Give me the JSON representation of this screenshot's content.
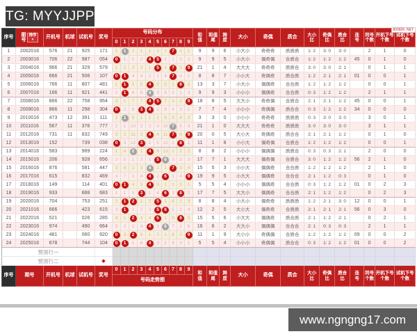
{
  "page": {
    "tg_label": "TG: MYYJJPP",
    "corner_mark": "800820. NET",
    "site_watermark": "www.ngngng17.com"
  },
  "table": {
    "headers": {
      "seq": "序号",
      "period": "期号",
      "period_stack": [
        "期",
        "号"
      ],
      "sort": "排序",
      "sort_arrow": "▼",
      "open": "开机号",
      "mball": "机球",
      "test": "试机号",
      "prize": "奖号",
      "dist_title": "号码分布",
      "trend_title": "号码走势图",
      "sum": [
        "和",
        "值"
      ],
      "sum_tail": [
        "和值",
        "尾"
      ],
      "span": [
        "跨",
        "度"
      ],
      "size": [
        "大小"
      ],
      "parity": [
        "奇偶"
      ],
      "prime": [
        "质合"
      ],
      "size_ratio": [
        "大小",
        "比"
      ],
      "parity_ratio": [
        "奇偶",
        "比"
      ],
      "prime_ratio": [
        "质合",
        "比"
      ],
      "consec": [
        "连",
        "号"
      ],
      "same_count": [
        "同号",
        "个数"
      ],
      "open_next": [
        "开机下号",
        "个数"
      ],
      "test_next": [
        "试机下号",
        "个数"
      ]
    },
    "digits": [
      "0",
      "1",
      "2",
      "3",
      "4",
      "5",
      "6",
      "7",
      "8",
      "9"
    ],
    "prediction_rows": [
      {
        "label": "预测行一",
        "mark": ""
      },
      {
        "label": "预测行二",
        "mark": "◆"
      }
    ],
    "rows": [
      {
        "seq": "1",
        "period": "2002016",
        "open": "576",
        "mball": "21",
        "test": "925",
        "prize": "171",
        "grid": [
          "1",
          "g1",
          "1",
          "1",
          "1",
          "1",
          "1",
          "r7",
          "1",
          "1"
        ],
        "sum": "9",
        "tail": "9",
        "span": "6",
        "size": "小大小",
        "parity": "奇奇奇",
        "prime": "质质质",
        "sr": "1: 2",
        "pr": "3: 0",
        "qr": "3: 0",
        "lh": "",
        "tong": "2",
        "kai": "1",
        "shi": "0"
      },
      {
        "seq": "2",
        "period": "2003016",
        "open": "706",
        "mball": "22",
        "test": "987",
        "prize": "054",
        "grid": [
          "r0",
          "1",
          "2",
          "2",
          "r4",
          "r5",
          "2",
          "1",
          "2",
          "2"
        ],
        "sum": "9",
        "tail": "9",
        "span": "5",
        "size": "小大小",
        "parity": "偶奇偶",
        "prime": "合质合",
        "sr": "1: 2",
        "pr": "1: 2",
        "qr": "1: 2",
        "lh": "45",
        "tong": "0",
        "kai": "1",
        "shi": "0"
      },
      {
        "seq": "3",
        "period": "2004016",
        "open": "966",
        "mball": "21",
        "test": "329",
        "prize": "579",
        "grid": [
          "1",
          "2",
          "3",
          "3",
          "1",
          "r5",
          "3",
          "r7",
          "3",
          "r9"
        ],
        "sum": "21",
        "tail": "1",
        "span": "4",
        "size": "大大大",
        "parity": "奇奇奇",
        "prime": "质质合",
        "sr": "3: 0",
        "pr": "3: 0",
        "qr": "2: 1",
        "lh": "",
        "tong": "0",
        "kai": "1",
        "shi": "1"
      },
      {
        "seq": "4",
        "period": "2005016",
        "open": "666",
        "mball": "21",
        "test": "506",
        "prize": "107",
        "grid": [
          "r0",
          "r1",
          "4",
          "4",
          "2",
          "1",
          "4",
          "r7",
          "4",
          "1"
        ],
        "sum": "8",
        "tail": "8",
        "span": "7",
        "size": "小小大",
        "parity": "奇偶奇",
        "prime": "质合质",
        "sr": "1: 2",
        "pr": "2: 1",
        "qr": "2: 1",
        "lh": "01",
        "tong": "0",
        "kai": "0",
        "shi": "1"
      },
      {
        "seq": "5",
        "period": "2006016",
        "open": "766",
        "mball": "11",
        "test": "807",
        "prize": "481",
        "grid": [
          "1",
          "r1",
          "5",
          "5",
          "r4",
          "2",
          "5",
          "1",
          "r8",
          "2"
        ],
        "sum": "13",
        "tail": "3",
        "span": "7",
        "size": "小大小",
        "parity": "偶偶奇",
        "prime": "合合质",
        "sr": "1: 2",
        "pr": "1: 2",
        "qr": "1: 2",
        "lh": "",
        "tong": "0",
        "kai": "0",
        "shi": "1"
      },
      {
        "seq": "6",
        "period": "2007016",
        "open": "166",
        "mball": "11",
        "test": "921",
        "prize": "441",
        "grid": [
          "2",
          "r1",
          "6",
          "6",
          "g4",
          "3",
          "6",
          "2",
          "1",
          "3"
        ],
        "sum": "9",
        "tail": "9",
        "span": "3",
        "size": "小小小",
        "parity": "偶偶奇",
        "prime": "合合质",
        "sr": "0: 3",
        "pr": "1: 2",
        "qr": "1: 2",
        "lh": "",
        "tong": "2",
        "kai": "1",
        "shi": "1"
      },
      {
        "seq": "7",
        "period": "2008016",
        "open": "866",
        "mball": "22",
        "test": "758",
        "prize": "954",
        "grid": [
          "3",
          "1",
          "7",
          "7",
          "r4",
          "r5",
          "7",
          "3",
          "2",
          "r9"
        ],
        "sum": "18",
        "tail": "8",
        "span": "5",
        "size": "大大小",
        "parity": "奇奇偶",
        "prime": "合质合",
        "sr": "2: 1",
        "pr": "2: 1",
        "qr": "1: 2",
        "lh": "45",
        "tong": "0",
        "kai": "0",
        "shi": "1"
      },
      {
        "seq": "8",
        "period": "2009016",
        "open": "866",
        "mball": "11",
        "test": "298",
        "prize": "304",
        "grid": [
          "r0",
          "2",
          "8",
          "r3",
          "r4",
          "1",
          "8",
          "4",
          "3",
          "1"
        ],
        "sum": "7",
        "tail": "7",
        "span": "4",
        "size": "小小小",
        "parity": "奇偶偶",
        "prime": "质合合",
        "sr": "0: 3",
        "pr": "1: 2",
        "qr": "1: 2",
        "lh": "34",
        "tong": "0",
        "kai": "0",
        "shi": "0"
      },
      {
        "seq": "9",
        "period": "2010016",
        "open": "473",
        "mball": "12",
        "test": "391",
        "prize": "111",
        "grid": [
          "1",
          "g1",
          "9",
          "1",
          "1",
          "2",
          "9",
          "5",
          "4",
          "2"
        ],
        "sum": "3",
        "tail": "3",
        "span": "0",
        "size": "小小小",
        "parity": "奇奇奇",
        "prime": "质质质",
        "sr": "0: 3",
        "pr": "3: 0",
        "qr": "3: 0",
        "lh": "",
        "tong": "3",
        "kai": "0",
        "shi": "1"
      },
      {
        "seq": "10",
        "period": "2011016",
        "open": "567",
        "mball": "11",
        "test": "376",
        "prize": "777",
        "grid": [
          "2",
          "1",
          "10",
          "2",
          "2",
          "3",
          "10",
          "g7",
          "5",
          "3"
        ],
        "sum": "21",
        "tail": "1",
        "span": "0",
        "size": "大大大",
        "parity": "奇奇奇",
        "prime": "质质质",
        "sr": "3: 0",
        "pr": "3: 0",
        "qr": "3: 0",
        "lh": "",
        "tong": "3",
        "kai": "1",
        "shi": "1"
      },
      {
        "seq": "11",
        "period": "2012016",
        "open": "731",
        "mball": "11",
        "test": "832",
        "prize": "749",
        "grid": [
          "3",
          "2",
          "11",
          "3",
          "r4",
          "4",
          "11",
          "r7",
          "6",
          "r9"
        ],
        "sum": "20",
        "tail": "0",
        "span": "5",
        "size": "大小大",
        "parity": "奇偶奇",
        "prime": "质合合",
        "sr": "2: 1",
        "pr": "2: 1",
        "qr": "1: 2",
        "lh": "",
        "tong": "0",
        "kai": "1",
        "shi": "0"
      },
      {
        "seq": "12",
        "period": "2013016",
        "open": "152",
        "mball": "",
        "test": "739",
        "prize": "038",
        "grid": [
          "r0",
          "3",
          "12",
          "r3",
          "1",
          "5",
          "12",
          "1",
          "r8",
          "1"
        ],
        "sum": "11",
        "tail": "1",
        "span": "8",
        "size": "小小大",
        "parity": "偶奇偶",
        "prime": "合质合",
        "sr": "1: 2",
        "pr": "1: 2",
        "qr": "1: 2",
        "lh": "",
        "tong": "0",
        "kai": "0",
        "shi": "1"
      },
      {
        "seq": "13",
        "period": "2014016",
        "open": "583",
        "mball": "",
        "test": "989",
        "prize": "224",
        "grid": [
          "1",
          "4",
          "g2",
          "1",
          "r4",
          "6",
          "13",
          "2",
          "1",
          "2"
        ],
        "sum": "8",
        "tail": "8",
        "span": "2",
        "size": "小小小",
        "parity": "偶偶偶",
        "prime": "质质合",
        "sr": "0: 3",
        "pr": "0: 3",
        "qr": "2: 1",
        "lh": "",
        "tong": "2",
        "kai": "0",
        "shi": "0"
      },
      {
        "seq": "14",
        "period": "2015016",
        "open": "206",
        "mball": "",
        "test": "928",
        "prize": "656",
        "grid": [
          "2",
          "5",
          "1",
          "2",
          "1",
          "r5",
          "g6",
          "3",
          "2",
          "3"
        ],
        "sum": "17",
        "tail": "7",
        "span": "1",
        "size": "大大大",
        "parity": "偶奇偶",
        "prime": "合质合",
        "sr": "3: 0",
        "pr": "1: 2",
        "qr": "1: 2",
        "lh": "56",
        "tong": "2",
        "kai": "1",
        "shi": "0"
      },
      {
        "seq": "15",
        "period": "2016016",
        "open": "876",
        "mball": "",
        "test": "581",
        "prize": "447",
        "grid": [
          "3",
          "6",
          "2",
          "3",
          "g4",
          "1",
          "1",
          "r7",
          "3",
          "4"
        ],
        "sum": "15",
        "tail": "5",
        "span": "3",
        "size": "小小大",
        "parity": "偶偶奇",
        "prime": "合合质",
        "sr": "1: 2",
        "pr": "1: 2",
        "qr": "1: 2",
        "lh": "",
        "tong": "2",
        "kai": "1",
        "shi": "0"
      },
      {
        "seq": "16",
        "period": "2017016",
        "open": "615",
        "mball": "",
        "test": "832",
        "prize": "469",
        "grid": [
          "4",
          "7",
          "3",
          "4",
          "r4",
          "2",
          "r6",
          "1",
          "4",
          "r9"
        ],
        "sum": "19",
        "tail": "9",
        "span": "5",
        "size": "小大大",
        "parity": "偶偶奇",
        "prime": "合合合",
        "sr": "2: 1",
        "pr": "1: 2",
        "qr": "0: 3",
        "lh": "",
        "tong": "0",
        "kai": "1",
        "shi": "0"
      },
      {
        "seq": "17",
        "period": "2018016",
        "open": "149",
        "mball": "",
        "test": "114",
        "prize": "401",
        "grid": [
          "r0",
          "r1",
          "4",
          "5",
          "r4",
          "3",
          "1",
          "2",
          "5",
          "1"
        ],
        "sum": "5",
        "tail": "5",
        "span": "4",
        "size": "小小小",
        "parity": "偶偶奇",
        "prime": "合合质",
        "sr": "0: 3",
        "pr": "1: 2",
        "qr": "1: 2",
        "lh": "01",
        "tong": "0",
        "kai": "2",
        "shi": "3"
      },
      {
        "seq": "18",
        "period": "2019016",
        "open": "933",
        "mball": "",
        "test": "888",
        "prize": "683",
        "grid": [
          "1",
          "1",
          "5",
          "r3",
          "1",
          "4",
          "r6",
          "3",
          "r8",
          "2"
        ],
        "sum": "17",
        "tail": "7",
        "span": "5",
        "size": "大大小",
        "parity": "偶偶奇",
        "prime": "合合质",
        "sr": "2: 1",
        "pr": "1: 2",
        "qr": "1: 2",
        "lh": "",
        "tong": "0",
        "kai": "2",
        "shi": "3"
      },
      {
        "seq": "19",
        "period": "2020016",
        "open": "704",
        "mball": "",
        "test": "753",
        "prize": "251",
        "grid": [
          "2",
          "r1",
          "r2",
          "1",
          "2",
          "r5",
          "1",
          "4",
          "1",
          "3"
        ],
        "sum": "8",
        "tail": "8",
        "span": "4",
        "size": "小大小",
        "parity": "偶奇奇",
        "prime": "质质质",
        "sr": "1: 2",
        "pr": "2: 1",
        "qr": "3: 0",
        "lh": "12",
        "tong": "0",
        "kai": "0",
        "shi": "1"
      },
      {
        "seq": "20",
        "period": "2021016",
        "open": "666",
        "mball": "",
        "test": "423",
        "prize": "615",
        "grid": [
          "3",
          "r1",
          "1",
          "2",
          "3",
          "r5",
          "r6",
          "5",
          "2",
          "4"
        ],
        "sum": "12",
        "tail": "2",
        "span": "5",
        "size": "大小大",
        "parity": "偶奇奇",
        "prime": "合质质",
        "sr": "2: 1",
        "pr": "2: 1",
        "qr": "2: 1",
        "lh": "56",
        "tong": "0",
        "kai": "3",
        "shi": "0"
      },
      {
        "seq": "21",
        "period": "2022016",
        "open": "521",
        "mball": "",
        "test": "026",
        "prize": "285",
        "grid": [
          "4",
          "1",
          "r2",
          "3",
          "4",
          "r5",
          "1",
          "6",
          "r8",
          "5"
        ],
        "sum": "15",
        "tail": "5",
        "span": "6",
        "size": "小大大",
        "parity": "偶偶奇",
        "prime": "质合质",
        "sr": "2: 1",
        "pr": "1: 2",
        "qr": "2: 1",
        "lh": "",
        "tong": "0",
        "kai": "2",
        "shi": "1"
      },
      {
        "seq": "22",
        "period": "2023016",
        "open": "974",
        "mball": "",
        "test": "490",
        "prize": "664",
        "grid": [
          "5",
          "2",
          "1",
          "4",
          "r4",
          "1",
          "g6",
          "7",
          "1",
          "6"
        ],
        "sum": "16",
        "tail": "6",
        "span": "2",
        "size": "大大小",
        "parity": "偶偶偶",
        "prime": "合合合",
        "sr": "2: 1",
        "pr": "0: 3",
        "qr": "0: 3",
        "lh": "",
        "tong": "2",
        "kai": "1",
        "shi": "1"
      },
      {
        "seq": "23",
        "period": "2024016",
        "open": "481",
        "mball": "",
        "test": "060",
        "prize": "920",
        "grid": [
          "r0",
          "3",
          "r2",
          "5",
          "1",
          "2",
          "1",
          "8",
          "2",
          "r9"
        ],
        "sum": "11",
        "tail": "1",
        "span": "9",
        "size": "大小小",
        "parity": "奇偶偶",
        "prime": "合质合",
        "sr": "1: 2",
        "pr": "1: 2",
        "qr": "1: 2",
        "lh": "09",
        "tong": "0",
        "kai": "0",
        "shi": "2"
      },
      {
        "seq": "24",
        "period": "2025016",
        "open": "678",
        "mball": "",
        "test": "744",
        "prize": "104",
        "grid": [
          "r0",
          "r1",
          "1",
          "6",
          "r4",
          "3",
          "2",
          "9",
          "3",
          "1"
        ],
        "sum": "5",
        "tail": "5",
        "span": "4",
        "size": "小小小",
        "parity": "奇偶偶",
        "prime": "质合合",
        "sr": "0: 3",
        "pr": "1: 2",
        "qr": "1: 2",
        "lh": "01",
        "tong": "0",
        "kai": "0",
        "shi": "2"
      }
    ]
  }
}
